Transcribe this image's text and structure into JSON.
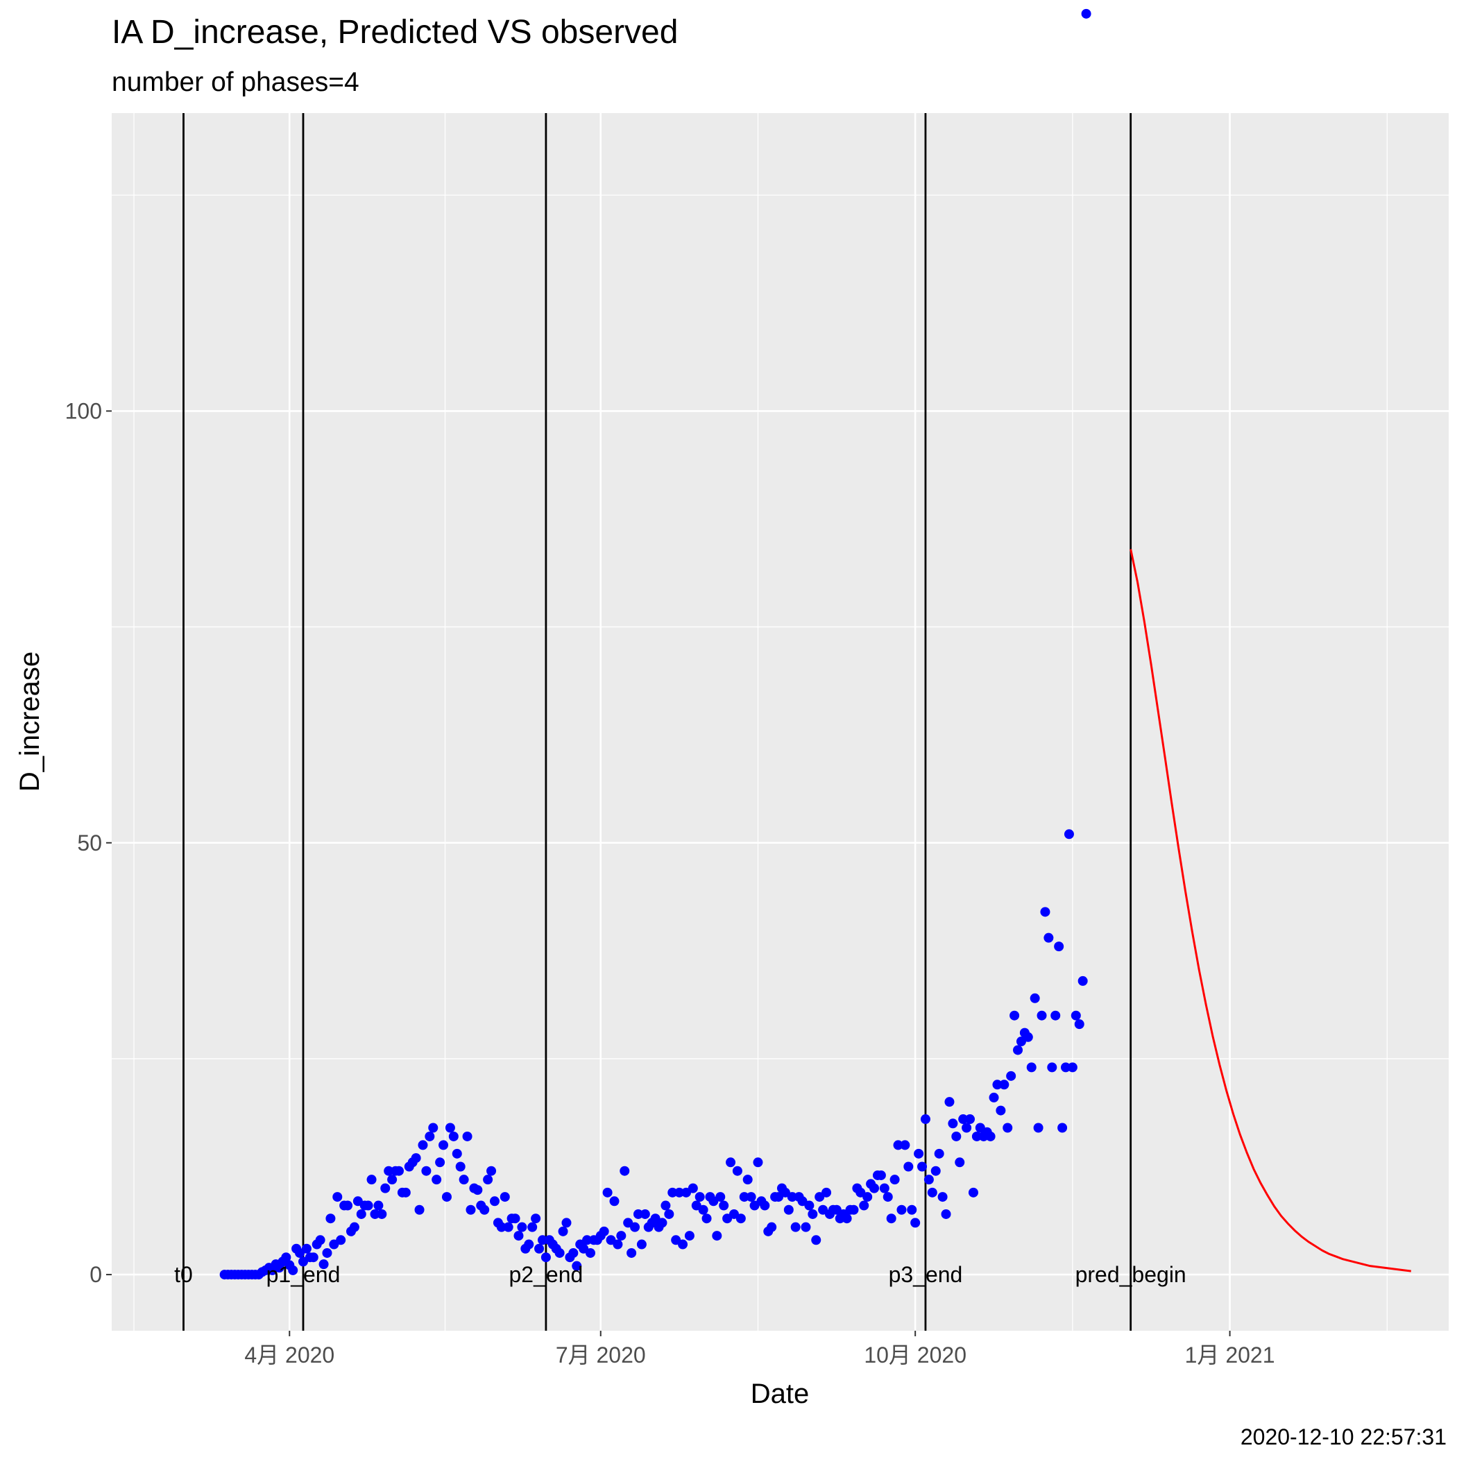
{
  "chart_data": {
    "type": "scatter",
    "title": "IA D_increase, Predicted VS observed",
    "subtitle": "number of phases=4",
    "xlabel": "Date",
    "ylabel": "D_increase",
    "footer": "2020-12-10 22:57:31",
    "x_ticks": [
      {
        "date": "2020-04-01",
        "label": "4月 2020"
      },
      {
        "date": "2020-07-01",
        "label": "7月 2020"
      },
      {
        "date": "2020-10-01",
        "label": "10月 2020"
      },
      {
        "date": "2021-01-01",
        "label": "1月 2021"
      }
    ],
    "y_ticks": [
      0,
      50,
      100
    ],
    "xlim": [
      "2020-02-09",
      "2021-03-06"
    ],
    "ylim": [
      -6.5,
      134.5
    ],
    "grid": true,
    "colors": {
      "observed": "#0000ff",
      "predicted": "#ff0000",
      "vline": "#000000",
      "panel": "#ebebeb",
      "grid": "#ffffff"
    },
    "vlines": [
      {
        "date": "2020-03-01",
        "label": "t0"
      },
      {
        "date": "2020-04-05",
        "label": "p1_end"
      },
      {
        "date": "2020-06-15",
        "label": "p2_end"
      },
      {
        "date": "2020-10-04",
        "label": "p3_end"
      },
      {
        "date": "2020-12-03",
        "label": "pred_begin"
      }
    ],
    "observed": {
      "start": "2020-03-13",
      "values": [
        0,
        0,
        0,
        0,
        0,
        0,
        0,
        0,
        0,
        0,
        0,
        0.3,
        0.5,
        0.8,
        0.5,
        1.2,
        0.8,
        1.5,
        2,
        1.1,
        0.5,
        3,
        2.5,
        1.5,
        3,
        2,
        2,
        3.5,
        4,
        1.2,
        2.5,
        6.5,
        3.5,
        9,
        4,
        8,
        8,
        5,
        5.5,
        8.5,
        7,
        8,
        8,
        11,
        7,
        8,
        7,
        10,
        12,
        11,
        12,
        12,
        9.5,
        9.5,
        12.5,
        13,
        13.5,
        7.5,
        15,
        12,
        16,
        17,
        11,
        13,
        15,
        9,
        17,
        16,
        14,
        12.5,
        11,
        16,
        7.5,
        10,
        9.8,
        8,
        7.5,
        11,
        12,
        8.5,
        6,
        5.5,
        9,
        5.5,
        6.5,
        6.5,
        4.5,
        5.5,
        3,
        3.5,
        5.5,
        6.5,
        3,
        4,
        2,
        4,
        3.5,
        3,
        2.5,
        5,
        6,
        2,
        2.5,
        1,
        3.5,
        3,
        4,
        2.5,
        4,
        4,
        4.5,
        5,
        9.5,
        4,
        8.5,
        3.5,
        4.5,
        12,
        6,
        2.5,
        5.5,
        7,
        3.5,
        7,
        5.5,
        6,
        6.5,
        5.5,
        6,
        8,
        7,
        9.5,
        4,
        9.5,
        3.5,
        9.5,
        4.5,
        10,
        8,
        9,
        7.5,
        6.5,
        9,
        8.5,
        4.5,
        9,
        8,
        6.5,
        13,
        7,
        12,
        6.5,
        9,
        11,
        9,
        8,
        13,
        8.5,
        8,
        5,
        5.5,
        9,
        9,
        10,
        9.5,
        7.5,
        9,
        5.5,
        9,
        8.5,
        5.5,
        8,
        7,
        4,
        9,
        7.5,
        9.5,
        7,
        7.5,
        7.5,
        6.5,
        7,
        6.5,
        7.5,
        7.5,
        10,
        9.5,
        8,
        9,
        10.5,
        10,
        11.5,
        11.5,
        10,
        9,
        6.5,
        11,
        15,
        7.5,
        15,
        12.5,
        7.5,
        6,
        14,
        12.5,
        18,
        11,
        9.5,
        12,
        14,
        9,
        7,
        20,
        17.5,
        16,
        13,
        18,
        17,
        18,
        9.5,
        16,
        17,
        16,
        16.5,
        16,
        20.5,
        22,
        19,
        22,
        17,
        23,
        30,
        26,
        27,
        28,
        27.5,
        24,
        32,
        17,
        30,
        42,
        39,
        24,
        30,
        38,
        17,
        24,
        51,
        24,
        30,
        29,
        34,
        146
      ]
    },
    "predicted": {
      "start": "2020-12-03",
      "values": [
        84,
        80.2,
        75.6,
        70.6,
        65.3,
        60,
        54.6,
        49.4,
        44.4,
        39.7,
        35.3,
        31.3,
        27.6,
        24.3,
        21.3,
        18.6,
        16.2,
        14.1,
        12.2,
        10.6,
        9.2,
        7.9,
        6.8,
        5.9,
        5.1,
        4.4,
        3.8,
        3.3,
        2.8,
        2.4,
        2.1,
        1.8,
        1.6,
        1.4,
        1.2,
        1,
        0.9,
        0.8,
        0.7,
        0.6,
        0.5,
        0.4
      ]
    }
  }
}
